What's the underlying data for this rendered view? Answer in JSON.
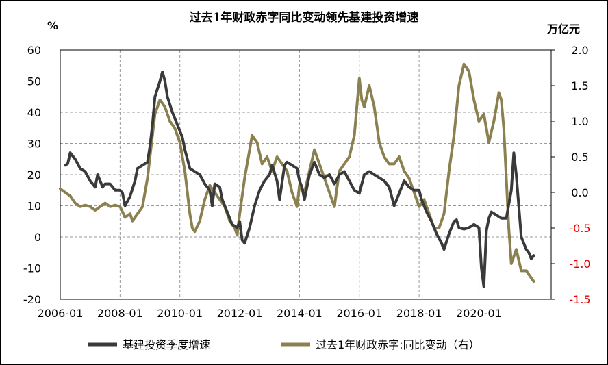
{
  "chart_data": {
    "type": "line",
    "title": "过去1年财政赤字同比变动领先基建投资增速",
    "y_left_unit": "%",
    "y_right_unit": "万亿元",
    "y_left_range": [
      -20,
      60
    ],
    "y_right_range": [
      -1.5,
      2.0
    ],
    "y_left_ticks": [
      "60",
      "50",
      "40",
      "30",
      "20",
      "10",
      "0",
      "-10",
      "-20"
    ],
    "y_right_ticks": [
      "2.0",
      "1.5",
      "1.0",
      "0.5",
      "0.0",
      "-0.5",
      "-1.0",
      "-1.5"
    ],
    "x_range": [
      "2006-01",
      "2022-06"
    ],
    "x_ticks": [
      "2006-01",
      "2008-01",
      "2010-01",
      "2012-01",
      "2014-01",
      "2016-01",
      "2018-01",
      "2020-01"
    ],
    "grid": true,
    "legend_position": "bottom",
    "colors": {
      "infra": "#3a3a3a",
      "deficit": "#8b8050",
      "right_axis_negative": "#e60000"
    },
    "series": [
      {
        "name": "基建投资季度增速",
        "axis": "left",
        "points": [
          [
            "2006-03",
            23
          ],
          [
            "2006-04",
            23.5
          ],
          [
            "2006-05",
            27
          ],
          [
            "2006-07",
            25
          ],
          [
            "2006-09",
            22
          ],
          [
            "2006-11",
            21
          ],
          [
            "2007-01",
            18
          ],
          [
            "2007-03",
            16
          ],
          [
            "2007-04",
            20
          ],
          [
            "2007-06",
            16
          ],
          [
            "2007-07",
            17
          ],
          [
            "2007-09",
            17
          ],
          [
            "2007-11",
            15
          ],
          [
            "2008-01",
            15
          ],
          [
            "2008-02",
            14
          ],
          [
            "2008-03",
            10
          ],
          [
            "2008-05",
            13
          ],
          [
            "2008-07",
            18
          ],
          [
            "2008-08",
            22
          ],
          [
            "2008-10",
            23
          ],
          [
            "2008-12",
            24
          ],
          [
            "2009-01",
            29
          ],
          [
            "2009-02",
            36
          ],
          [
            "2009-03",
            45
          ],
          [
            "2009-05",
            50
          ],
          [
            "2009-06",
            53
          ],
          [
            "2009-07",
            50
          ],
          [
            "2009-08",
            45
          ],
          [
            "2009-10",
            40
          ],
          [
            "2009-12",
            36
          ],
          [
            "2010-02",
            32
          ],
          [
            "2010-03",
            28
          ],
          [
            "2010-05",
            22
          ],
          [
            "2010-07",
            21
          ],
          [
            "2010-09",
            20
          ],
          [
            "2010-11",
            17
          ],
          [
            "2011-01",
            15
          ],
          [
            "2011-02",
            10
          ],
          [
            "2011-03",
            17
          ],
          [
            "2011-05",
            16
          ],
          [
            "2011-06",
            12
          ],
          [
            "2011-08",
            8
          ],
          [
            "2011-10",
            4
          ],
          [
            "2011-12",
            3
          ],
          [
            "2012-01",
            5
          ],
          [
            "2012-02",
            -1
          ],
          [
            "2012-03",
            -2
          ],
          [
            "2012-05",
            3
          ],
          [
            "2012-07",
            10
          ],
          [
            "2012-09",
            15
          ],
          [
            "2012-11",
            18
          ],
          [
            "2013-01",
            20
          ],
          [
            "2013-02",
            23
          ],
          [
            "2013-04",
            18
          ],
          [
            "2013-05",
            12
          ],
          [
            "2013-07",
            23
          ],
          [
            "2013-08",
            24
          ],
          [
            "2013-10",
            23
          ],
          [
            "2013-12",
            22
          ],
          [
            "2014-01",
            18
          ],
          [
            "2014-02",
            16
          ],
          [
            "2014-03",
            12
          ],
          [
            "2014-05",
            20
          ],
          [
            "2014-07",
            24
          ],
          [
            "2014-09",
            20
          ],
          [
            "2014-11",
            19
          ],
          [
            "2015-01",
            20
          ],
          [
            "2015-03",
            17
          ],
          [
            "2015-05",
            20
          ],
          [
            "2015-07",
            21
          ],
          [
            "2015-09",
            18
          ],
          [
            "2015-11",
            15
          ],
          [
            "2016-01",
            14
          ],
          [
            "2016-02",
            17
          ],
          [
            "2016-03",
            20
          ],
          [
            "2016-05",
            21
          ],
          [
            "2016-07",
            20
          ],
          [
            "2016-09",
            19
          ],
          [
            "2016-11",
            18
          ],
          [
            "2017-01",
            16
          ],
          [
            "2017-03",
            10
          ],
          [
            "2017-05",
            14
          ],
          [
            "2017-07",
            18
          ],
          [
            "2017-09",
            16
          ],
          [
            "2017-11",
            15
          ],
          [
            "2018-01",
            15
          ],
          [
            "2018-02",
            12
          ],
          [
            "2018-04",
            8
          ],
          [
            "2018-06",
            5
          ],
          [
            "2018-08",
            1
          ],
          [
            "2018-10",
            -2
          ],
          [
            "2018-11",
            -4
          ],
          [
            "2019-01",
            1
          ],
          [
            "2019-03",
            5
          ],
          [
            "2019-04",
            5.5
          ],
          [
            "2019-05",
            3
          ],
          [
            "2019-07",
            2.5
          ],
          [
            "2019-09",
            3
          ],
          [
            "2019-11",
            4
          ],
          [
            "2020-01",
            3
          ],
          [
            "2020-02",
            -10
          ],
          [
            "2020-03",
            -16
          ],
          [
            "2020-04",
            2
          ],
          [
            "2020-05",
            6
          ],
          [
            "2020-06",
            8
          ],
          [
            "2020-08",
            7
          ],
          [
            "2020-10",
            6
          ],
          [
            "2020-12",
            6
          ],
          [
            "2021-02",
            15
          ],
          [
            "2021-03",
            27
          ],
          [
            "2021-04",
            20
          ],
          [
            "2021-06",
            0
          ],
          [
            "2021-08",
            -4
          ],
          [
            "2021-09",
            -5
          ],
          [
            "2021-10",
            -7
          ],
          [
            "2021-11",
            -6
          ]
        ]
      },
      {
        "name": "过去1年财政赤字:同比变动（右）",
        "axis": "right",
        "points": [
          [
            "2006-01",
            0.05
          ],
          [
            "2006-03",
            0.0
          ],
          [
            "2006-05",
            -0.05
          ],
          [
            "2006-07",
            -0.15
          ],
          [
            "2006-09",
            -0.2
          ],
          [
            "2006-11",
            -0.18
          ],
          [
            "2007-01",
            -0.2
          ],
          [
            "2007-03",
            -0.25
          ],
          [
            "2007-05",
            -0.2
          ],
          [
            "2007-07",
            -0.15
          ],
          [
            "2007-09",
            -0.2
          ],
          [
            "2007-11",
            -0.18
          ],
          [
            "2008-01",
            -0.2
          ],
          [
            "2008-03",
            -0.35
          ],
          [
            "2008-05",
            -0.3
          ],
          [
            "2008-06",
            -0.4
          ],
          [
            "2008-08",
            -0.3
          ],
          [
            "2008-10",
            -0.2
          ],
          [
            "2008-12",
            0.2
          ],
          [
            "2009-01",
            0.5
          ],
          [
            "2009-03",
            1.1
          ],
          [
            "2009-05",
            1.3
          ],
          [
            "2009-07",
            1.2
          ],
          [
            "2009-09",
            1.0
          ],
          [
            "2009-11",
            0.9
          ],
          [
            "2010-01",
            0.7
          ],
          [
            "2010-03",
            0.3
          ],
          [
            "2010-05",
            -0.3
          ],
          [
            "2010-06",
            -0.5
          ],
          [
            "2010-07",
            -0.55
          ],
          [
            "2010-09",
            -0.4
          ],
          [
            "2010-11",
            -0.1
          ],
          [
            "2011-01",
            0.1
          ],
          [
            "2011-03",
            0.0
          ],
          [
            "2011-05",
            -0.1
          ],
          [
            "2011-07",
            -0.2
          ],
          [
            "2011-09",
            -0.4
          ],
          [
            "2011-11",
            -0.5
          ],
          [
            "2011-12",
            -0.6
          ],
          [
            "2012-01",
            -0.3
          ],
          [
            "2012-03",
            0.2
          ],
          [
            "2012-05",
            0.6
          ],
          [
            "2012-06",
            0.8
          ],
          [
            "2012-08",
            0.7
          ],
          [
            "2012-10",
            0.4
          ],
          [
            "2012-12",
            0.5
          ],
          [
            "2013-02",
            0.3
          ],
          [
            "2013-04",
            0.5
          ],
          [
            "2013-06",
            0.4
          ],
          [
            "2013-08",
            0.3
          ],
          [
            "2013-10",
            0.0
          ],
          [
            "2013-12",
            -0.2
          ],
          [
            "2014-01",
            0.1
          ],
          [
            "2014-03",
            0.0
          ],
          [
            "2014-05",
            0.3
          ],
          [
            "2014-07",
            0.6
          ],
          [
            "2014-09",
            0.4
          ],
          [
            "2014-11",
            0.2
          ],
          [
            "2015-01",
            0.0
          ],
          [
            "2015-03",
            -0.2
          ],
          [
            "2015-05",
            0.3
          ],
          [
            "2015-07",
            0.4
          ],
          [
            "2015-09",
            0.5
          ],
          [
            "2015-11",
            0.8
          ],
          [
            "2016-01",
            1.6
          ],
          [
            "2016-02",
            1.3
          ],
          [
            "2016-03",
            1.2
          ],
          [
            "2016-05",
            1.5
          ],
          [
            "2016-07",
            1.2
          ],
          [
            "2016-09",
            0.7
          ],
          [
            "2016-11",
            0.5
          ],
          [
            "2017-01",
            0.4
          ],
          [
            "2017-03",
            0.4
          ],
          [
            "2017-05",
            0.5
          ],
          [
            "2017-07",
            0.3
          ],
          [
            "2017-09",
            0.2
          ],
          [
            "2017-11",
            0.0
          ],
          [
            "2018-01",
            -0.2
          ],
          [
            "2018-03",
            -0.1
          ],
          [
            "2018-05",
            -0.3
          ],
          [
            "2018-07",
            -0.5
          ],
          [
            "2018-09",
            -0.5
          ],
          [
            "2018-11",
            -0.3
          ],
          [
            "2019-01",
            0.3
          ],
          [
            "2019-03",
            0.8
          ],
          [
            "2019-05",
            1.5
          ],
          [
            "2019-07",
            1.8
          ],
          [
            "2019-09",
            1.7
          ],
          [
            "2019-11",
            1.3
          ],
          [
            "2020-01",
            1.0
          ],
          [
            "2020-03",
            1.1
          ],
          [
            "2020-05",
            0.7
          ],
          [
            "2020-07",
            1.0
          ],
          [
            "2020-09",
            1.4
          ],
          [
            "2020-10",
            1.3
          ],
          [
            "2020-11",
            0.9
          ],
          [
            "2021-01",
            -0.5
          ],
          [
            "2021-02",
            -1.0
          ],
          [
            "2021-04",
            -0.8
          ],
          [
            "2021-06",
            -1.1
          ],
          [
            "2021-08",
            -1.1
          ],
          [
            "2021-10",
            -1.2
          ],
          [
            "2021-11",
            -1.25
          ]
        ]
      }
    ]
  }
}
